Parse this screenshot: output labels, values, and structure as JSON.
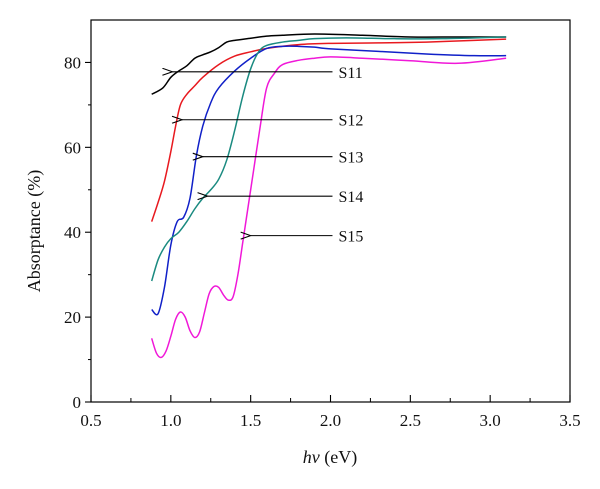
{
  "chart_data": {
    "type": "line",
    "xlabel_italic": "hν",
    "xlabel_unit": " (eV)",
    "ylabel": "Absorptance (%)",
    "xlim": [
      0.5,
      3.5
    ],
    "ylim": [
      0,
      90
    ],
    "xticks": [
      "0.5",
      "1.0",
      "1.5",
      "2.0",
      "2.5",
      "3.0",
      "3.5"
    ],
    "yticks": [
      "0",
      "20",
      "40",
      "60",
      "80"
    ],
    "grid": false,
    "legend": "none",
    "series": [
      {
        "name": "S11",
        "color": "#000000",
        "x": [
          0.88,
          0.95,
          1.0,
          1.05,
          1.1,
          1.15,
          1.2,
          1.25,
          1.3,
          1.35,
          1.4,
          1.5,
          1.6,
          1.7,
          1.9,
          2.2,
          2.5,
          2.8,
          3.1
        ],
        "y": [
          72.5,
          74.0,
          76.5,
          78.0,
          79.2,
          81.0,
          81.8,
          82.5,
          83.5,
          84.8,
          85.2,
          85.7,
          86.2,
          86.4,
          86.7,
          86.4,
          86.0,
          86.0,
          86.0
        ]
      },
      {
        "name": "S12",
        "color": "#e8191f",
        "x": [
          0.88,
          0.92,
          0.96,
          1.0,
          1.03,
          1.06,
          1.1,
          1.15,
          1.2,
          1.3,
          1.4,
          1.5,
          1.6,
          1.8,
          2.0,
          2.3,
          2.6,
          2.9,
          3.1
        ],
        "y": [
          42.5,
          47.0,
          52.0,
          59.0,
          65.0,
          70.0,
          72.5,
          74.5,
          76.5,
          79.5,
          81.5,
          82.5,
          83.3,
          84.2,
          84.5,
          84.6,
          84.8,
          85.2,
          85.5
        ]
      },
      {
        "name": "S13",
        "color": "#1020c8",
        "x": [
          0.88,
          0.92,
          0.96,
          1.0,
          1.04,
          1.08,
          1.12,
          1.16,
          1.2,
          1.25,
          1.3,
          1.4,
          1.5,
          1.6,
          1.7,
          1.8,
          1.9,
          2.0,
          2.3,
          2.6,
          2.9,
          3.1
        ],
        "y": [
          21.8,
          20.8,
          27.0,
          37.0,
          42.5,
          43.5,
          48.0,
          58.0,
          65.0,
          70.5,
          74.0,
          78.0,
          81.0,
          83.3,
          83.8,
          83.8,
          83.6,
          83.2,
          82.6,
          82.0,
          81.6,
          81.6
        ]
      },
      {
        "name": "S14",
        "color": "#1a8a80",
        "x": [
          0.88,
          0.92,
          0.96,
          1.0,
          1.05,
          1.1,
          1.15,
          1.2,
          1.25,
          1.3,
          1.35,
          1.4,
          1.45,
          1.5,
          1.55,
          1.6,
          1.7,
          1.8,
          1.9,
          2.1,
          2.4,
          2.7,
          3.1
        ],
        "y": [
          28.5,
          33.5,
          36.5,
          38.5,
          40.0,
          42.5,
          45.5,
          48.0,
          50.0,
          52.5,
          57.0,
          64.0,
          72.0,
          78.5,
          82.5,
          84.0,
          84.8,
          85.2,
          85.6,
          85.8,
          85.6,
          85.6,
          86.0
        ]
      },
      {
        "name": "S15",
        "color": "#f018d8",
        "x": [
          0.88,
          0.91,
          0.94,
          0.97,
          1.0,
          1.03,
          1.06,
          1.09,
          1.12,
          1.15,
          1.18,
          1.21,
          1.24,
          1.27,
          1.3,
          1.33,
          1.36,
          1.39,
          1.42,
          1.45,
          1.48,
          1.52,
          1.56,
          1.6,
          1.65,
          1.7,
          1.8,
          1.9,
          2.0,
          2.2,
          2.5,
          2.8,
          3.1
        ],
        "y": [
          15.0,
          11.5,
          10.5,
          12.0,
          15.5,
          19.5,
          21.2,
          20.0,
          16.8,
          15.2,
          16.5,
          21.0,
          25.5,
          27.2,
          27.0,
          25.2,
          24.0,
          24.8,
          30.0,
          37.5,
          45.0,
          55.0,
          65.0,
          74.0,
          77.5,
          79.5,
          80.5,
          81.0,
          81.3,
          81.0,
          80.4,
          79.8,
          81.0
        ]
      }
    ],
    "annotations": [
      {
        "label": "S11",
        "text_x": 2.05,
        "text_y": 77.8,
        "arrow_to_x": 1.01,
        "arrow_to_y": 77.8
      },
      {
        "label": "S12",
        "text_x": 2.05,
        "text_y": 66.5,
        "arrow_to_x": 1.07,
        "arrow_to_y": 66.5
      },
      {
        "label": "S13",
        "text_x": 2.05,
        "text_y": 57.8,
        "arrow_to_x": 1.2,
        "arrow_to_y": 57.8
      },
      {
        "label": "S14",
        "text_x": 2.05,
        "text_y": 48.5,
        "arrow_to_x": 1.23,
        "arrow_to_y": 48.5
      },
      {
        "label": "S15",
        "text_x": 2.05,
        "text_y": 39.2,
        "arrow_to_x": 1.5,
        "arrow_to_y": 39.2
      }
    ]
  }
}
